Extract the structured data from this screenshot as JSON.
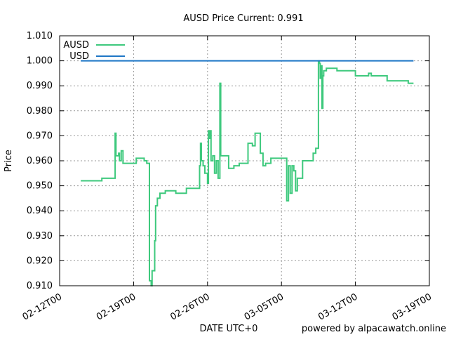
{
  "chart_data": {
    "type": "line",
    "title": "AUSD Price Current: 0.991",
    "xlabel": "DATE UTC+0",
    "ylabel": "Price",
    "footer": "powered by alpacawatch.online",
    "grid": true,
    "legend_position": "top-left",
    "xlim": [
      "2025-02-12T00",
      "2025-03-19T00"
    ],
    "ylim": [
      0.91,
      1.01
    ],
    "x_ticks": [
      {
        "x": "2025-02-12T00",
        "label": "02-12T00"
      },
      {
        "x": "2025-02-19T00",
        "label": "02-19T00"
      },
      {
        "x": "2025-02-26T00",
        "label": "02-26T00"
      },
      {
        "x": "2025-03-05T00",
        "label": "03-05T00"
      },
      {
        "x": "2025-03-12T00",
        "label": "03-12T00"
      },
      {
        "x": "2025-03-19T00",
        "label": "03-19T00"
      }
    ],
    "y_ticks": [
      0.91,
      0.92,
      0.93,
      0.94,
      0.95,
      0.96,
      0.97,
      0.98,
      0.99,
      1.0,
      1.01
    ],
    "y_tick_labels": [
      "0.910",
      "0.920",
      "0.930",
      "0.940",
      "0.950",
      "0.960",
      "0.970",
      "0.980",
      "0.990",
      "1.000",
      "1.010"
    ],
    "series": [
      {
        "name": "AUSD",
        "color": "#3ec97d",
        "step": true,
        "points": [
          [
            "2025-02-14T00",
            0.952
          ],
          [
            "2025-02-16T00",
            0.953
          ],
          [
            "2025-02-17T06",
            0.971
          ],
          [
            "2025-02-17T08",
            0.962
          ],
          [
            "2025-02-17T14",
            0.963
          ],
          [
            "2025-02-17T16",
            0.96
          ],
          [
            "2025-02-17T20",
            0.964
          ],
          [
            "2025-02-18T00",
            0.959
          ],
          [
            "2025-02-19T00",
            0.959
          ],
          [
            "2025-02-19T06",
            0.961
          ],
          [
            "2025-02-20T00",
            0.96
          ],
          [
            "2025-02-20T06",
            0.959
          ],
          [
            "2025-02-20T12",
            0.912
          ],
          [
            "2025-02-20T16",
            0.91
          ],
          [
            "2025-02-20T18",
            0.916
          ],
          [
            "2025-02-21T00",
            0.928
          ],
          [
            "2025-02-21T02",
            0.942
          ],
          [
            "2025-02-21T06",
            0.945
          ],
          [
            "2025-02-21T12",
            0.947
          ],
          [
            "2025-02-22T00",
            0.948
          ],
          [
            "2025-02-23T00",
            0.947
          ],
          [
            "2025-02-24T00",
            0.949
          ],
          [
            "2025-02-25T06",
            0.958
          ],
          [
            "2025-02-25T08",
            0.967
          ],
          [
            "2025-02-25T10",
            0.96
          ],
          [
            "2025-02-25T14",
            0.958
          ],
          [
            "2025-02-25T18",
            0.955
          ],
          [
            "2025-02-26T00",
            0.951
          ],
          [
            "2025-02-26T02",
            0.972
          ],
          [
            "2025-02-26T04",
            0.969
          ],
          [
            "2025-02-26T06",
            0.972
          ],
          [
            "2025-02-26T08",
            0.96
          ],
          [
            "2025-02-26T12",
            0.962
          ],
          [
            "2025-02-26T16",
            0.955
          ],
          [
            "2025-02-26T20",
            0.96
          ],
          [
            "2025-02-27T00",
            0.953
          ],
          [
            "2025-02-27T04",
            0.991
          ],
          [
            "2025-02-27T06",
            0.962
          ],
          [
            "2025-02-28T00",
            0.957
          ],
          [
            "2025-02-28T12",
            0.958
          ],
          [
            "2025-03-01T00",
            0.959
          ],
          [
            "2025-03-01T20",
            0.967
          ],
          [
            "2025-03-02T06",
            0.966
          ],
          [
            "2025-03-02T12",
            0.971
          ],
          [
            "2025-03-03T00",
            0.963
          ],
          [
            "2025-03-03T06",
            0.958
          ],
          [
            "2025-03-03T12",
            0.959
          ],
          [
            "2025-03-04T00",
            0.961
          ],
          [
            "2025-03-05T12",
            0.944
          ],
          [
            "2025-03-05T16",
            0.958
          ],
          [
            "2025-03-05T20",
            0.947
          ],
          [
            "2025-03-06T00",
            0.958
          ],
          [
            "2025-03-06T04",
            0.956
          ],
          [
            "2025-03-06T08",
            0.948
          ],
          [
            "2025-03-06T12",
            0.953
          ],
          [
            "2025-03-07T00",
            0.96
          ],
          [
            "2025-03-08T00",
            0.963
          ],
          [
            "2025-03-08T06",
            0.965
          ],
          [
            "2025-03-08T12",
            1.0
          ],
          [
            "2025-03-08T14",
            0.999
          ],
          [
            "2025-03-08T16",
            0.993
          ],
          [
            "2025-03-08T18",
            0.998
          ],
          [
            "2025-03-08T20",
            0.981
          ],
          [
            "2025-03-08T22",
            0.994
          ],
          [
            "2025-03-09T00",
            0.996
          ],
          [
            "2025-03-09T06",
            0.997
          ],
          [
            "2025-03-10T06",
            0.996
          ],
          [
            "2025-03-12T00",
            0.994
          ],
          [
            "2025-03-13T06",
            0.995
          ],
          [
            "2025-03-13T12",
            0.994
          ],
          [
            "2025-03-15T00",
            0.992
          ],
          [
            "2025-03-17T00",
            0.991
          ],
          [
            "2025-03-17T12",
            0.991
          ]
        ]
      },
      {
        "name": "USD",
        "color": "#1f77c6",
        "step": false,
        "points": [
          [
            "2025-02-14T00",
            1.0
          ],
          [
            "2025-03-17T12",
            1.0
          ]
        ]
      }
    ]
  }
}
